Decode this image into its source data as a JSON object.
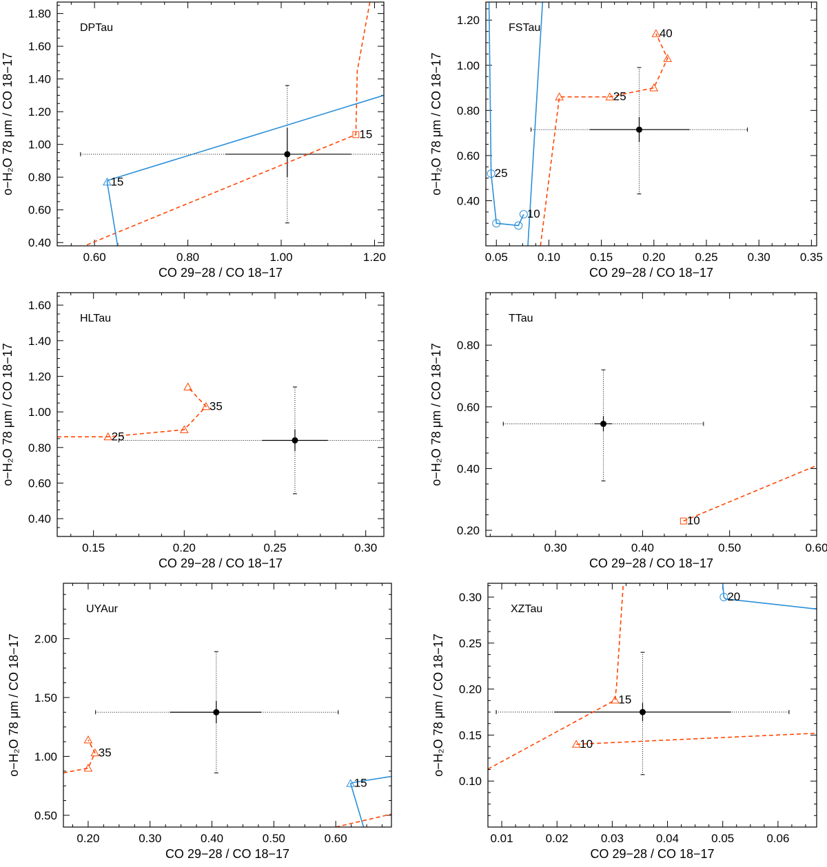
{
  "chart_data": [
    {
      "type": "scatter",
      "panel_label": "DPTau",
      "xlabel": "CO 29−28 / CO 18−17",
      "ylabel": "o−H₂O 78 μm / CO 18−17",
      "xlim": [
        0.52,
        1.22
      ],
      "ylim": [
        0.38,
        1.87
      ],
      "xticks": [
        0.6,
        0.8,
        1.0,
        1.2
      ],
      "xtick_labels": [
        "0.60",
        "0.80",
        "1.00",
        "1.20"
      ],
      "yticks": [
        0.4,
        0.6,
        0.8,
        1.0,
        1.2,
        1.4,
        1.6,
        1.8
      ],
      "ytick_labels": [
        "0.40",
        "0.60",
        "0.80",
        "1.00",
        "1.20",
        "1.40",
        "1.60",
        "1.80"
      ],
      "observation": {
        "x": 1.013,
        "y": 0.94,
        "x_err_inner": [
          0.88,
          1.15
        ],
        "x_err_outer": [
          0.57,
          1.22
        ],
        "y_err_inner": [
          0.8,
          1.1
        ],
        "y_err_outer": [
          0.52,
          1.36
        ]
      },
      "series": [
        {
          "style": "dashed",
          "color": "#ff4500",
          "x": [
            0.57,
            1.16,
            1.163,
            1.19
          ],
          "y": [
            0.37,
            1.06,
            1.45,
            1.87
          ],
          "markers": [
            {
              "x": 1.16,
              "y": 1.06,
              "shape": "square",
              "label": "15"
            }
          ]
        },
        {
          "style": "solid",
          "color": "#2a8fd8",
          "x": [
            0.65,
            0.627,
            0.628,
            1.22
          ],
          "y": [
            0.37,
            0.77,
            0.78,
            1.3
          ],
          "markers": [
            {
              "x": 0.627,
              "y": 0.77,
              "shape": "triangle",
              "label": "15"
            }
          ]
        }
      ]
    },
    {
      "type": "scatter",
      "panel_label": "FSTau",
      "xlabel": "CO 29−28 / CO 18−17",
      "ylabel": "o−H₂O 78 μm / CO 18−17",
      "xlim": [
        0.04,
        0.355
      ],
      "ylim": [
        0.2,
        1.28
      ],
      "xticks": [
        0.05,
        0.1,
        0.15,
        0.2,
        0.25,
        0.3,
        0.35
      ],
      "xtick_labels": [
        "0.05",
        "0.10",
        "0.15",
        "0.20",
        "0.25",
        "0.30",
        "0.35"
      ],
      "yticks": [
        0.4,
        0.6,
        0.8,
        1.0,
        1.2
      ],
      "ytick_labels": [
        "0.40",
        "0.60",
        "0.80",
        "1.00",
        "1.20"
      ],
      "observation": {
        "x": 0.186,
        "y": 0.715,
        "x_err_inner": [
          0.139,
          0.234
        ],
        "x_err_outer": [
          0.083,
          0.289
        ],
        "y_err_inner": [
          0.66,
          0.77
        ],
        "y_err_outer": [
          0.43,
          0.99
        ]
      },
      "series": [
        {
          "style": "dashed",
          "color": "#ff4500",
          "x": [
            0.092,
            0.11,
            0.158,
            0.2,
            0.213,
            0.202
          ],
          "y": [
            0.2,
            0.86,
            0.86,
            0.9,
            1.03,
            1.14
          ],
          "markers": [
            {
              "x": 0.11,
              "y": 0.86,
              "shape": "triangle"
            },
            {
              "x": 0.158,
              "y": 0.86,
              "shape": "triangle",
              "label": "25"
            },
            {
              "x": 0.2,
              "y": 0.9,
              "shape": "triangle"
            },
            {
              "x": 0.213,
              "y": 1.03,
              "shape": "triangle"
            },
            {
              "x": 0.202,
              "y": 1.14,
              "shape": "triangle",
              "label": "40"
            }
          ]
        },
        {
          "style": "solid",
          "color": "#2a8fd8",
          "x": [
            0.043,
            0.045,
            0.05,
            0.071,
            0.076
          ],
          "y": [
            1.28,
            0.52,
            0.3,
            0.29,
            0.34
          ],
          "markers": [
            {
              "x": 0.045,
              "y": 0.52,
              "shape": "circle",
              "label": "25"
            },
            {
              "x": 0.05,
              "y": 0.3,
              "shape": "circle"
            },
            {
              "x": 0.071,
              "y": 0.29,
              "shape": "circle"
            },
            {
              "x": 0.076,
              "y": 0.34,
              "shape": "circle",
              "label": "10"
            }
          ]
        },
        {
          "style": "solid",
          "color": "#2a8fd8",
          "x": [
            0.08,
            0.094
          ],
          "y": [
            0.2,
            1.28
          ],
          "markers": []
        }
      ]
    },
    {
      "type": "scatter",
      "panel_label": "HLTau",
      "xlabel": "CO 29−28 / CO 18−17",
      "ylabel": "o−H₂O 78 μm / CO 18−17",
      "xlim": [
        0.13,
        0.31
      ],
      "ylim": [
        0.3,
        1.67
      ],
      "xticks": [
        0.15,
        0.2,
        0.25,
        0.3
      ],
      "xtick_labels": [
        "0.15",
        "0.20",
        "0.25",
        "0.30"
      ],
      "yticks": [
        0.4,
        0.6,
        0.8,
        1.0,
        1.2,
        1.4,
        1.6
      ],
      "ytick_labels": [
        "0.40",
        "0.60",
        "0.80",
        "1.00",
        "1.20",
        "1.40",
        "1.60"
      ],
      "observation": {
        "x": 0.261,
        "y": 0.84,
        "x_err_inner": [
          0.243,
          0.279
        ],
        "x_err_outer": [
          0.164,
          0.31
        ],
        "y_err_inner": [
          0.78,
          0.9
        ],
        "y_err_outer": [
          0.54,
          1.14
        ]
      },
      "series": [
        {
          "style": "dashed",
          "color": "#ff4500",
          "x": [
            0.13,
            0.158,
            0.2,
            0.212,
            0.202
          ],
          "y": [
            0.86,
            0.86,
            0.9,
            1.03,
            1.14
          ],
          "markers": [
            {
              "x": 0.158,
              "y": 0.86,
              "shape": "triangle",
              "label": "25"
            },
            {
              "x": 0.2,
              "y": 0.9,
              "shape": "triangle"
            },
            {
              "x": 0.212,
              "y": 1.03,
              "shape": "triangle",
              "label": "35"
            },
            {
              "x": 0.202,
              "y": 1.14,
              "shape": "triangle"
            }
          ]
        }
      ]
    },
    {
      "type": "scatter",
      "panel_label": "TTau",
      "xlabel": "CO 29−28 / CO 18−17",
      "ylabel": "o−H₂O 78 μm / CO 18−17",
      "xlim": [
        0.22,
        0.6
      ],
      "ylim": [
        0.18,
        0.97
      ],
      "xticks": [
        0.3,
        0.4,
        0.5,
        0.6
      ],
      "xtick_labels": [
        "0.30",
        "0.40",
        "0.50",
        "0.60"
      ],
      "yticks": [
        0.2,
        0.4,
        0.6,
        0.8
      ],
      "ytick_labels": [
        "0.20",
        "0.40",
        "0.60",
        "0.80"
      ],
      "observation": {
        "x": 0.355,
        "y": 0.545,
        "x_err_inner": [
          0.345,
          0.365
        ],
        "x_err_outer": [
          0.24,
          0.47
        ],
        "y_err_inner": [
          0.52,
          0.57
        ],
        "y_err_outer": [
          0.36,
          0.72
        ]
      },
      "series": [
        {
          "style": "dashed",
          "color": "#ff4500",
          "x": [
            0.447,
            0.6
          ],
          "y": [
            0.23,
            0.41
          ],
          "markers": [
            {
              "x": 0.447,
              "y": 0.23,
              "shape": "square",
              "label": "10"
            }
          ]
        }
      ]
    },
    {
      "type": "scatter",
      "panel_label": "UYAur",
      "xlabel": "CO 29−28 / CO 18−17",
      "ylabel": "o−H₂O 78 μm / CO 18−17",
      "xlim": [
        0.16,
        0.69
      ],
      "ylim": [
        0.4,
        2.47
      ],
      "xticks": [
        0.2,
        0.3,
        0.4,
        0.5,
        0.6
      ],
      "xtick_labels": [
        "0.20",
        "0.30",
        "0.40",
        "0.50",
        "0.60"
      ],
      "yticks": [
        0.5,
        1.0,
        1.5,
        2.0
      ],
      "ytick_labels": [
        "0.50",
        "1.00",
        "1.50",
        "2.00"
      ],
      "observation": {
        "x": 0.407,
        "y": 1.375,
        "x_err_inner": [
          0.332,
          0.48
        ],
        "x_err_outer": [
          0.212,
          0.604
        ],
        "y_err_inner": [
          1.28,
          1.47
        ],
        "y_err_outer": [
          0.86,
          1.89
        ]
      },
      "series": [
        {
          "style": "dashed",
          "color": "#ff4500",
          "x": [
            0.16,
            0.2,
            0.211,
            0.2
          ],
          "y": [
            0.86,
            0.9,
            1.03,
            1.14
          ],
          "markers": [
            {
              "x": 0.2,
              "y": 0.9,
              "shape": "triangle"
            },
            {
              "x": 0.211,
              "y": 1.03,
              "shape": "triangle",
              "label": "35"
            },
            {
              "x": 0.2,
              "y": 1.14,
              "shape": "triangle"
            }
          ]
        },
        {
          "style": "dashed",
          "color": "#ff4500",
          "x": [
            0.6,
            0.69
          ],
          "y": [
            0.4,
            0.51
          ],
          "markers": []
        },
        {
          "style": "solid",
          "color": "#2a8fd8",
          "x": [
            0.645,
            0.624,
            0.63,
            0.69
          ],
          "y": [
            0.4,
            0.77,
            0.78,
            0.83
          ],
          "markers": [
            {
              "x": 0.624,
              "y": 0.77,
              "shape": "triangle",
              "label": "15"
            }
          ]
        }
      ]
    },
    {
      "type": "scatter",
      "panel_label": "XZTau",
      "xlabel": "CO 29−28 / CO 18−17",
      "ylabel": "o−H₂O 78 μm / CO 18−17",
      "xlim": [
        0.0075,
        0.067
      ],
      "ylim": [
        0.05,
        0.315
      ],
      "xticks": [
        0.01,
        0.02,
        0.03,
        0.04,
        0.05,
        0.06
      ],
      "xtick_labels": [
        "0.01",
        "0.02",
        "0.03",
        "0.04",
        "0.05",
        "0.06"
      ],
      "yticks": [
        0.1,
        0.15,
        0.2,
        0.25,
        0.3
      ],
      "ytick_labels": [
        "0.10",
        "0.15",
        "0.20",
        "0.25",
        "0.30"
      ],
      "observation": {
        "x": 0.0355,
        "y": 0.175,
        "x_err_inner": [
          0.0195,
          0.0515
        ],
        "x_err_outer": [
          0.009,
          0.062
        ],
        "y_err_inner": [
          0.165,
          0.185
        ],
        "y_err_outer": [
          0.107,
          0.24
        ]
      },
      "series": [
        {
          "style": "dashed",
          "color": "#ff4500",
          "x": [
            0.0075,
            0.0305,
            0.0308,
            0.032
          ],
          "y": [
            0.113,
            0.188,
            0.205,
            0.315
          ],
          "markers": [
            {
              "x": 0.0305,
              "y": 0.188,
              "shape": "triangle",
              "label": "15"
            }
          ]
        },
        {
          "style": "dashed",
          "color": "#ff4500",
          "x": [
            0.0235,
            0.067
          ],
          "y": [
            0.14,
            0.152
          ],
          "markers": [
            {
              "x": 0.0235,
              "y": 0.14,
              "shape": "triangle",
              "label": "10"
            }
          ]
        },
        {
          "style": "solid",
          "color": "#2a8fd8",
          "x": [
            0.05,
            0.0502,
            0.0505,
            0.067
          ],
          "y": [
            0.315,
            0.3,
            0.298,
            0.287
          ],
          "markers": [
            {
              "x": 0.0502,
              "y": 0.3,
              "shape": "circle",
              "label": "20"
            }
          ]
        }
      ]
    }
  ]
}
